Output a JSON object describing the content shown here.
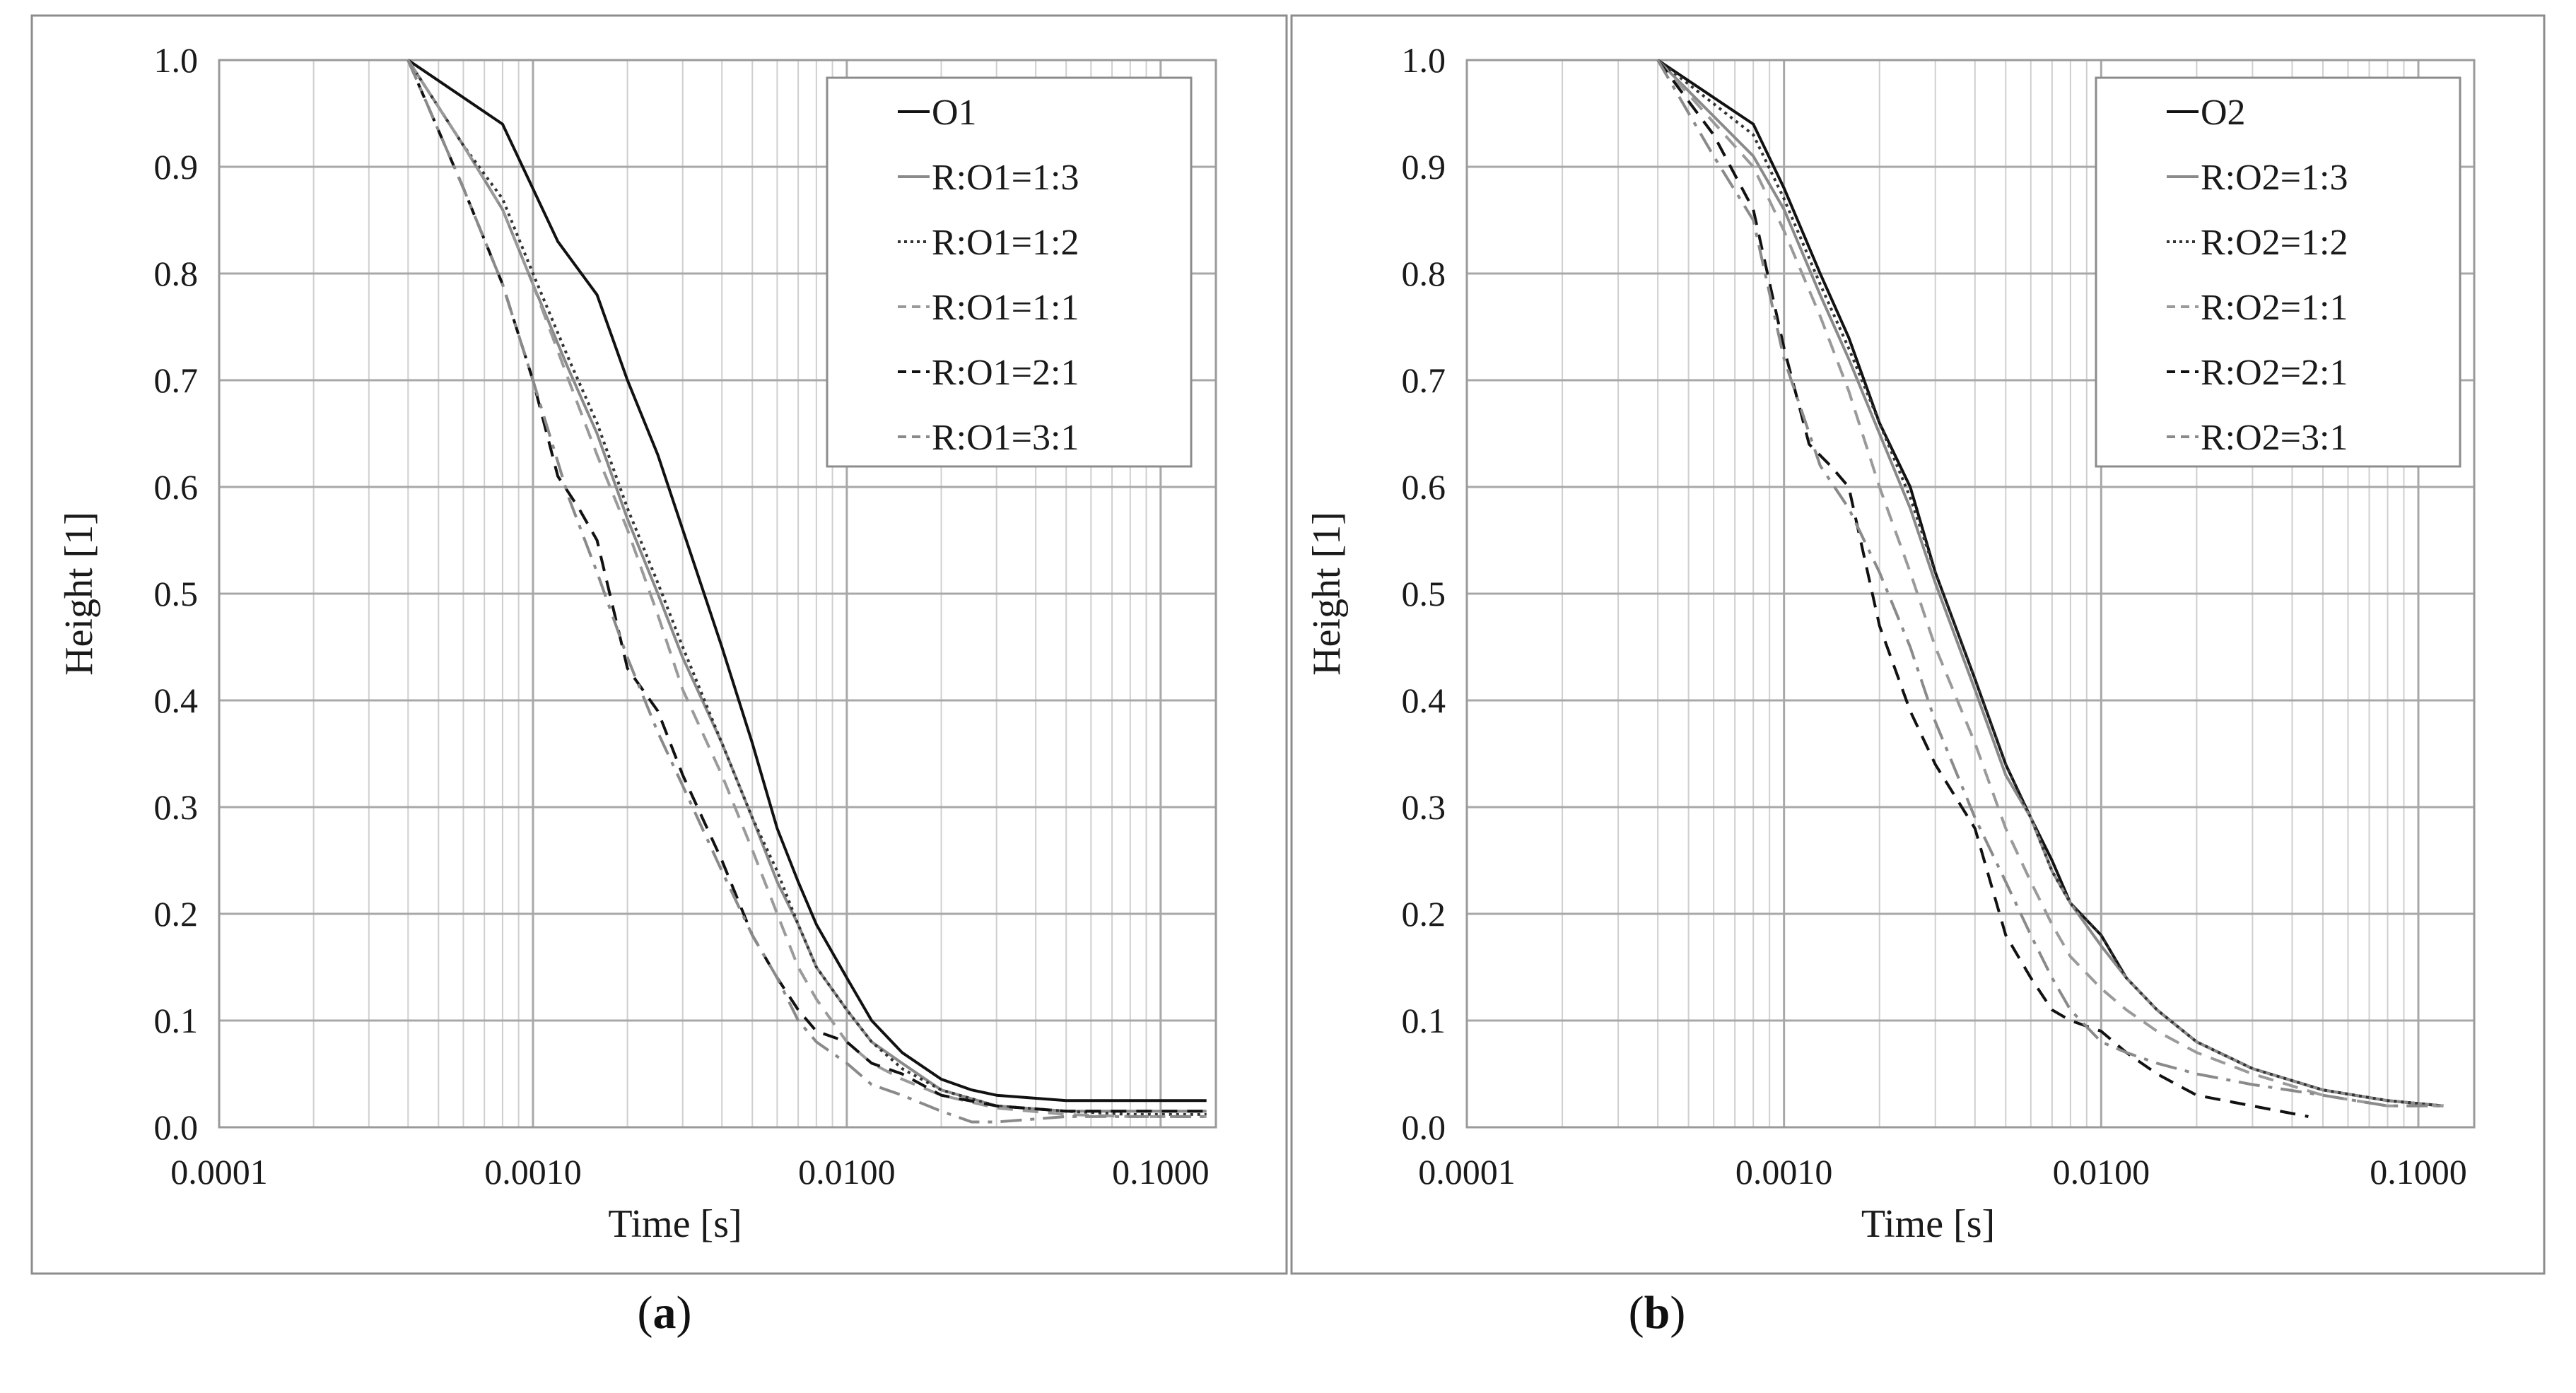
{
  "captions": [
    {
      "open": "(",
      "letter": "a",
      "close": ")"
    },
    {
      "open": "(",
      "letter": "b",
      "close": ")"
    }
  ],
  "chart_data": [
    {
      "type": "line",
      "x_scale": "log",
      "xlabel": "Time [s]",
      "ylabel": "Height [1]",
      "xlim": [
        0.0001,
        0.15
      ],
      "ylim": [
        0.0,
        1.0
      ],
      "x_ticks": [
        "0.0001",
        "0.0010",
        "0.0100",
        "0.1000"
      ],
      "y_ticks": [
        "0.0",
        "0.1",
        "0.2",
        "0.3",
        "0.4",
        "0.5",
        "0.6",
        "0.7",
        "0.8",
        "0.9",
        "1.0"
      ],
      "grid": true,
      "legend_position": "top-right",
      "series": [
        {
          "name": "O1",
          "style": "solid",
          "color": "#111111",
          "x": [
            0.0004,
            0.0008,
            0.0012,
            0.0016,
            0.002,
            0.0025,
            0.003,
            0.004,
            0.005,
            0.006,
            0.007,
            0.008,
            0.01,
            0.012,
            0.015,
            0.02,
            0.025,
            0.03,
            0.05,
            0.08,
            0.1,
            0.14
          ],
          "y": [
            1.0,
            0.94,
            0.83,
            0.78,
            0.7,
            0.63,
            0.56,
            0.45,
            0.36,
            0.28,
            0.23,
            0.19,
            0.14,
            0.1,
            0.07,
            0.045,
            0.035,
            0.03,
            0.025,
            0.025,
            0.025,
            0.025
          ]
        },
        {
          "name": "R:O1=1:3",
          "style": "solid",
          "color": "#8a8a8a",
          "x": [
            0.0004,
            0.0006,
            0.0008,
            0.001,
            0.0013,
            0.0016,
            0.002,
            0.0025,
            0.003,
            0.004,
            0.005,
            0.006,
            0.007,
            0.008,
            0.01,
            0.012,
            0.015,
            0.02,
            0.03,
            0.05,
            0.08,
            0.14
          ],
          "y": [
            1.0,
            0.92,
            0.86,
            0.79,
            0.71,
            0.65,
            0.57,
            0.5,
            0.44,
            0.36,
            0.29,
            0.23,
            0.19,
            0.15,
            0.11,
            0.08,
            0.06,
            0.035,
            0.02,
            0.015,
            0.015,
            0.015
          ]
        },
        {
          "name": "R:O1=1:2",
          "style": "dotted",
          "color": "#333333",
          "x": [
            0.0004,
            0.0006,
            0.0008,
            0.001,
            0.0013,
            0.0016,
            0.002,
            0.0025,
            0.003,
            0.004,
            0.005,
            0.006,
            0.007,
            0.008,
            0.01,
            0.012,
            0.015,
            0.02,
            0.03,
            0.05,
            0.08,
            0.14
          ],
          "y": [
            1.0,
            0.92,
            0.87,
            0.8,
            0.72,
            0.66,
            0.58,
            0.51,
            0.45,
            0.36,
            0.29,
            0.24,
            0.19,
            0.15,
            0.11,
            0.08,
            0.055,
            0.035,
            0.02,
            0.015,
            0.012,
            0.012
          ]
        },
        {
          "name": "R:O1=1:1",
          "style": "dashed",
          "color": "#9a9a9a",
          "x": [
            0.0004,
            0.0006,
            0.0008,
            0.001,
            0.0013,
            0.0016,
            0.002,
            0.0025,
            0.003,
            0.004,
            0.005,
            0.006,
            0.007,
            0.008,
            0.01,
            0.012,
            0.015,
            0.02,
            0.03,
            0.05,
            0.08,
            0.14
          ],
          "y": [
            1.0,
            0.92,
            0.86,
            0.79,
            0.7,
            0.63,
            0.56,
            0.48,
            0.41,
            0.33,
            0.26,
            0.2,
            0.15,
            0.12,
            0.08,
            0.06,
            0.045,
            0.03,
            0.018,
            0.012,
            0.01,
            0.01
          ]
        },
        {
          "name": "R:O1=2:1",
          "style": "dashed",
          "color": "#111111",
          "x": [
            0.0004,
            0.0006,
            0.0008,
            0.001,
            0.0012,
            0.0014,
            0.0016,
            0.002,
            0.0025,
            0.003,
            0.004,
            0.005,
            0.006,
            0.007,
            0.008,
            0.01,
            0.012,
            0.015,
            0.02,
            0.03,
            0.05,
            0.08,
            0.14
          ],
          "y": [
            1.0,
            0.88,
            0.79,
            0.7,
            0.61,
            0.58,
            0.55,
            0.43,
            0.39,
            0.33,
            0.25,
            0.18,
            0.14,
            0.11,
            0.09,
            0.08,
            0.06,
            0.05,
            0.03,
            0.02,
            0.015,
            0.015,
            0.015
          ]
        },
        {
          "name": "R:O1=3:1",
          "style": "dashdot",
          "color": "#8a8a8a",
          "x": [
            0.0004,
            0.0006,
            0.0008,
            0.001,
            0.0013,
            0.0016,
            0.002,
            0.0025,
            0.003,
            0.004,
            0.005,
            0.006,
            0.007,
            0.008,
            0.01,
            0.012,
            0.015,
            0.02,
            0.025,
            0.03,
            0.05,
            0.08,
            0.14
          ],
          "y": [
            1.0,
            0.88,
            0.79,
            0.7,
            0.59,
            0.52,
            0.44,
            0.37,
            0.32,
            0.24,
            0.18,
            0.14,
            0.1,
            0.08,
            0.06,
            0.04,
            0.03,
            0.015,
            0.005,
            0.005,
            0.01,
            0.01,
            0.01
          ]
        }
      ]
    },
    {
      "type": "line",
      "x_scale": "log",
      "xlabel": "Time [s]",
      "ylabel": "Height [1]",
      "xlim": [
        0.0001,
        0.15
      ],
      "ylim": [
        0.0,
        1.0
      ],
      "x_ticks": [
        "0.0001",
        "0.0010",
        "0.0100",
        "0.1000"
      ],
      "y_ticks": [
        "0.0",
        "0.1",
        "0.2",
        "0.3",
        "0.4",
        "0.5",
        "0.6",
        "0.7",
        "0.8",
        "0.9",
        "1.0"
      ],
      "grid": true,
      "legend_position": "top-right",
      "series": [
        {
          "name": "O2",
          "style": "solid",
          "color": "#111111",
          "x": [
            0.0004,
            0.0008,
            0.001,
            0.0013,
            0.0016,
            0.002,
            0.0025,
            0.003,
            0.004,
            0.005,
            0.006,
            0.007,
            0.008,
            0.01,
            0.012,
            0.015,
            0.02,
            0.03,
            0.05,
            0.08,
            0.12
          ],
          "y": [
            1.0,
            0.94,
            0.88,
            0.8,
            0.74,
            0.66,
            0.6,
            0.52,
            0.42,
            0.34,
            0.29,
            0.25,
            0.21,
            0.18,
            0.14,
            0.11,
            0.08,
            0.055,
            0.035,
            0.025,
            0.02
          ]
        },
        {
          "name": "R:O2=1:3",
          "style": "solid",
          "color": "#8a8a8a",
          "x": [
            0.0004,
            0.0008,
            0.001,
            0.0013,
            0.0016,
            0.002,
            0.0025,
            0.003,
            0.004,
            0.005,
            0.006,
            0.007,
            0.008,
            0.01,
            0.012,
            0.015,
            0.02,
            0.03,
            0.05,
            0.08,
            0.12
          ],
          "y": [
            1.0,
            0.91,
            0.86,
            0.78,
            0.72,
            0.65,
            0.58,
            0.51,
            0.41,
            0.33,
            0.29,
            0.24,
            0.21,
            0.17,
            0.14,
            0.11,
            0.08,
            0.055,
            0.035,
            0.025,
            0.02
          ]
        },
        {
          "name": "R:O2=1:2",
          "style": "dotted",
          "color": "#333333",
          "x": [
            0.0004,
            0.0008,
            0.001,
            0.0013,
            0.0016,
            0.002,
            0.0025,
            0.003,
            0.004,
            0.005,
            0.006,
            0.007,
            0.008,
            0.01,
            0.012,
            0.015,
            0.02,
            0.03,
            0.05,
            0.08,
            0.12
          ],
          "y": [
            1.0,
            0.93,
            0.87,
            0.79,
            0.73,
            0.66,
            0.59,
            0.52,
            0.42,
            0.34,
            0.29,
            0.24,
            0.21,
            0.18,
            0.14,
            0.11,
            0.08,
            0.055,
            0.035,
            0.025,
            0.02
          ]
        },
        {
          "name": "R:O2=1:1",
          "style": "dashed",
          "color": "#9a9a9a",
          "x": [
            0.0004,
            0.0008,
            0.001,
            0.0013,
            0.0016,
            0.002,
            0.0025,
            0.003,
            0.004,
            0.005,
            0.006,
            0.007,
            0.008,
            0.01,
            0.012,
            0.015,
            0.02,
            0.03,
            0.05,
            0.08,
            0.12
          ],
          "y": [
            1.0,
            0.9,
            0.84,
            0.76,
            0.69,
            0.6,
            0.52,
            0.45,
            0.36,
            0.28,
            0.23,
            0.19,
            0.16,
            0.13,
            0.11,
            0.09,
            0.07,
            0.05,
            0.03,
            0.02,
            0.02
          ]
        },
        {
          "name": "R:O2=2:1",
          "style": "dashed",
          "color": "#111111",
          "x": [
            0.0004,
            0.0006,
            0.0008,
            0.001,
            0.0012,
            0.0014,
            0.0016,
            0.002,
            0.0025,
            0.003,
            0.004,
            0.005,
            0.006,
            0.007,
            0.008,
            0.01,
            0.012,
            0.015,
            0.02,
            0.03,
            0.045
          ],
          "y": [
            1.0,
            0.93,
            0.86,
            0.73,
            0.64,
            0.62,
            0.6,
            0.47,
            0.39,
            0.34,
            0.28,
            0.18,
            0.14,
            0.11,
            0.1,
            0.09,
            0.07,
            0.05,
            0.03,
            0.02,
            0.01
          ]
        },
        {
          "name": "R:O2=3:1",
          "style": "dashdot",
          "color": "#8a8a8a",
          "x": [
            0.0004,
            0.0006,
            0.0008,
            0.001,
            0.0013,
            0.0016,
            0.002,
            0.0025,
            0.003,
            0.004,
            0.005,
            0.006,
            0.007,
            0.008,
            0.01,
            0.012,
            0.015,
            0.02,
            0.03,
            0.05,
            0.08,
            0.12
          ],
          "y": [
            1.0,
            0.91,
            0.85,
            0.72,
            0.62,
            0.58,
            0.52,
            0.45,
            0.38,
            0.29,
            0.23,
            0.18,
            0.14,
            0.11,
            0.08,
            0.07,
            0.06,
            0.05,
            0.04,
            0.03,
            0.02,
            0.02
          ]
        }
      ]
    }
  ]
}
